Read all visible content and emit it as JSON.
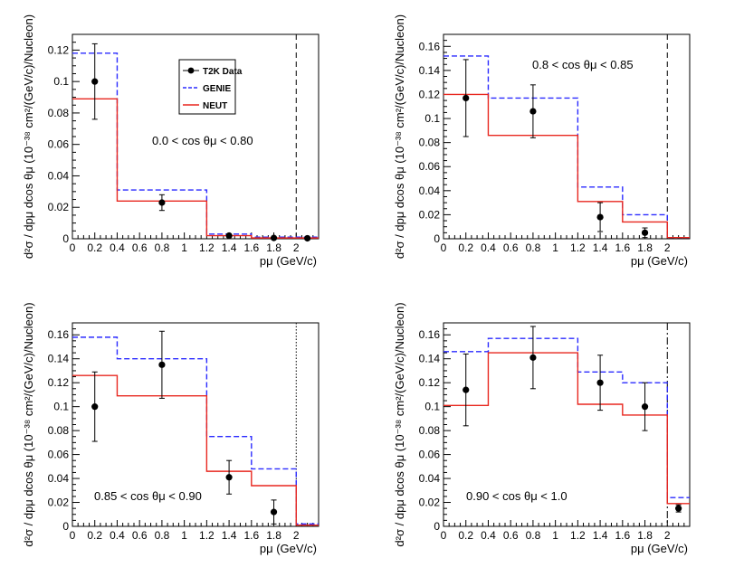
{
  "chart_data": [
    {
      "type": "step-histogram",
      "condition_label": "0.0 < cos θμ < 0.80",
      "xlabel": "pμ (GeV/c)",
      "ylabel": "d²σ / dpμ dcos θμ (10⁻³⁸ cm²/(GeV/c)/Nucleon)",
      "xlim": [
        0,
        2.2
      ],
      "ylim": [
        0,
        0.13
      ],
      "x_ticks": [
        0,
        0.2,
        0.4,
        0.6,
        0.8,
        1,
        1.2,
        1.4,
        1.6,
        1.8,
        2
      ],
      "x_tick_labels": [
        "0",
        "0.2",
        "0.4",
        "0.6",
        "0.8",
        "1",
        "1.2",
        "1.4",
        "1.6",
        "1.8",
        "2"
      ],
      "y_ticks": [
        0,
        0.02,
        0.04,
        0.06,
        0.08,
        0.1,
        0.12
      ],
      "y_tick_labels": [
        "0",
        "0.02",
        "0.04",
        "0.06",
        "0.08",
        "0.1",
        "0.12"
      ],
      "bin_edges": [
        0,
        0.4,
        1.2,
        1.6,
        2.0,
        2.2
      ],
      "series": [
        {
          "name": "GENIE",
          "values": [
            0.118,
            0.031,
            0.003,
            0.001,
            0.001
          ]
        },
        {
          "name": "NEUT",
          "values": [
            0.089,
            0.024,
            0.002,
            0.0005,
            0.0005
          ]
        }
      ],
      "data_points": {
        "name": "T2K Data",
        "x": [
          0.2,
          0.8,
          1.4,
          1.8,
          2.1
        ],
        "y": [
          0.1,
          0.023,
          0.002,
          0.0005,
          0.0003
        ],
        "err": [
          0.024,
          0.005,
          0.001,
          0.0004,
          0.0003
        ]
      },
      "divider_x": 2.0,
      "divider_style": "dashed"
    },
    {
      "type": "step-histogram",
      "condition_label": "0.8 < cos θμ < 0.85",
      "xlabel": "pμ (GeV/c)",
      "ylabel": "d²σ / dpμ dcos θμ (10⁻³⁸ cm²/(GeV/c)/Nucleon)",
      "xlim": [
        0,
        2.2
      ],
      "ylim": [
        0,
        0.17
      ],
      "x_ticks": [
        0,
        0.2,
        0.4,
        0.6,
        0.8,
        1,
        1.2,
        1.4,
        1.6,
        1.8,
        2
      ],
      "x_tick_labels": [
        "0",
        "0.2",
        "0.4",
        "0.6",
        "0.8",
        "1",
        "1.2",
        "1.4",
        "1.6",
        "1.8",
        "2"
      ],
      "y_ticks": [
        0,
        0.02,
        0.04,
        0.06,
        0.08,
        0.1,
        0.12,
        0.14,
        0.16
      ],
      "y_tick_labels": [
        "0",
        "0.02",
        "0.04",
        "0.06",
        "0.08",
        "0.1",
        "0.12",
        "0.14",
        "0.16"
      ],
      "bin_edges": [
        0,
        0.4,
        1.2,
        1.6,
        2.0,
        2.2
      ],
      "series": [
        {
          "name": "GENIE",
          "values": [
            0.152,
            0.117,
            0.043,
            0.02,
            0.001
          ]
        },
        {
          "name": "NEUT",
          "values": [
            0.12,
            0.086,
            0.031,
            0.014,
            0.001
          ]
        }
      ],
      "data_points": {
        "name": "T2K Data",
        "x": [
          0.2,
          0.8,
          1.4,
          1.8
        ],
        "y": [
          0.117,
          0.106,
          0.018,
          0.005
        ],
        "err": [
          0.032,
          0.022,
          0.012,
          0.004
        ]
      },
      "divider_x": 2.0,
      "divider_style": "dashed"
    },
    {
      "type": "step-histogram",
      "condition_label": "0.85 < cos θμ < 0.90",
      "xlabel": "pμ (GeV/c)",
      "ylabel": "d²σ / dpμ dcos θμ (10⁻³⁸ cm²/(GeV/c)/Nucleon)",
      "xlim": [
        0,
        2.2
      ],
      "ylim": [
        0,
        0.17
      ],
      "x_ticks": [
        0,
        0.2,
        0.4,
        0.6,
        0.8,
        1,
        1.2,
        1.4,
        1.6,
        1.8,
        2
      ],
      "x_tick_labels": [
        "0",
        "0.2",
        "0.4",
        "0.6",
        "0.8",
        "1",
        "1.2",
        "1.4",
        "1.6",
        "1.8",
        "2"
      ],
      "y_ticks": [
        0,
        0.02,
        0.04,
        0.06,
        0.08,
        0.1,
        0.12,
        0.14,
        0.16
      ],
      "y_tick_labels": [
        "0",
        "0.02",
        "0.04",
        "0.06",
        "0.08",
        "0.1",
        "0.12",
        "0.14",
        "0.16"
      ],
      "bin_edges": [
        0,
        0.4,
        1.2,
        1.6,
        2.0,
        2.2
      ],
      "series": [
        {
          "name": "GENIE",
          "values": [
            0.158,
            0.14,
            0.075,
            0.048,
            0.002
          ]
        },
        {
          "name": "NEUT",
          "values": [
            0.126,
            0.109,
            0.046,
            0.034,
            0.001
          ]
        }
      ],
      "data_points": {
        "name": "T2K Data",
        "x": [
          0.2,
          0.8,
          1.4,
          1.8
        ],
        "y": [
          0.1,
          0.135,
          0.041,
          0.012
        ],
        "err": [
          0.029,
          0.028,
          0.014,
          0.01
        ]
      },
      "divider_x": 2.0,
      "divider_style": "dotted"
    },
    {
      "type": "step-histogram",
      "condition_label": "0.90 < cos θμ < 1.0",
      "xlabel": "pμ (GeV/c)",
      "ylabel": "d²σ / dpμ dcos θμ (10⁻³⁸ cm²/(GeV/c)/Nucleon)",
      "xlim": [
        0,
        2.2
      ],
      "ylim": [
        0,
        0.17
      ],
      "x_ticks": [
        0,
        0.2,
        0.4,
        0.6,
        0.8,
        1,
        1.2,
        1.4,
        1.6,
        1.8,
        2
      ],
      "x_tick_labels": [
        "0",
        "0.2",
        "0.4",
        "0.6",
        "0.8",
        "1",
        "1.2",
        "1.4",
        "1.6",
        "1.8",
        "2"
      ],
      "y_ticks": [
        0,
        0.02,
        0.04,
        0.06,
        0.08,
        0.1,
        0.12,
        0.14,
        0.16
      ],
      "y_tick_labels": [
        "0",
        "0.02",
        "0.04",
        "0.06",
        "0.08",
        "0.1",
        "0.12",
        "0.14",
        "0.16"
      ],
      "bin_edges": [
        0,
        0.4,
        1.2,
        1.6,
        2.0,
        2.2
      ],
      "series": [
        {
          "name": "GENIE",
          "values": [
            0.146,
            0.157,
            0.129,
            0.12,
            0.024
          ]
        },
        {
          "name": "NEUT",
          "values": [
            0.101,
            0.145,
            0.102,
            0.093,
            0.019
          ]
        }
      ],
      "data_points": {
        "name": "T2K Data",
        "x": [
          0.2,
          0.8,
          1.4,
          1.8,
          2.1
        ],
        "y": [
          0.114,
          0.141,
          0.12,
          0.1,
          0.015
        ],
        "err": [
          0.03,
          0.026,
          0.023,
          0.02,
          0.003
        ]
      },
      "divider_x": 2.0,
      "divider_style": "dashdot"
    }
  ],
  "legend": {
    "entries": [
      {
        "label": "T2K Data",
        "style": "marker"
      },
      {
        "label": "GENIE",
        "style": "dashed"
      },
      {
        "label": "NEUT",
        "style": "solid"
      }
    ]
  },
  "colors": {
    "genie": "#2b2bff",
    "neut": "#e8271f",
    "data": "#000000",
    "axis": "#000000"
  }
}
